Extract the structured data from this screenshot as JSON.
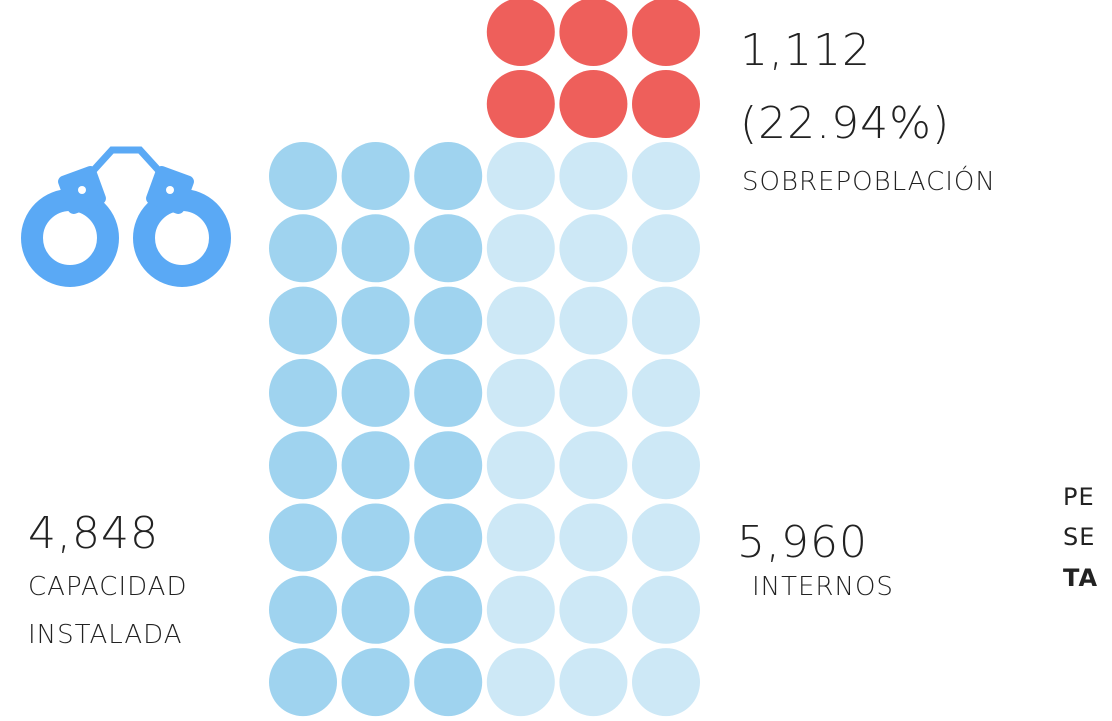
{
  "overpopulation": {
    "value": "1,112",
    "percent": "(22.94%)",
    "label": "SOBREPOBLACIÓN"
  },
  "capacity": {
    "value": "4,848",
    "label": [
      "CAPACIDAD",
      "INSTALADA"
    ]
  },
  "inmates": {
    "value": "5,960",
    "label": "INTERNOS"
  },
  "side_text": [
    "PE",
    "SE",
    "TA"
  ]
}
